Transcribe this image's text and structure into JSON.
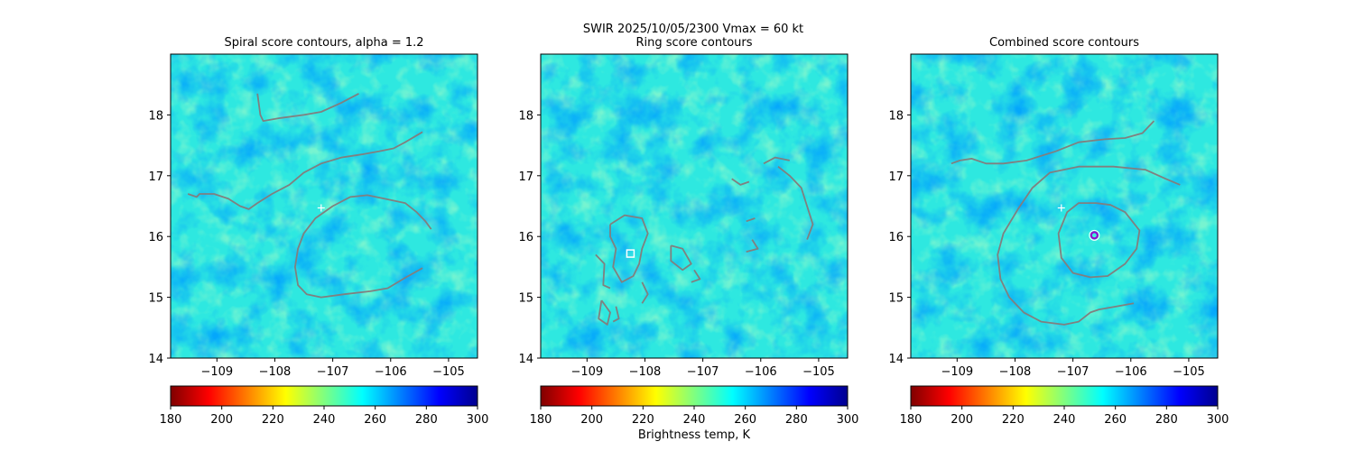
{
  "suptitle": "SWIR  2025/10/05/2300    Vmax = 60 kt",
  "colorbar_label": "Brightness temp, K",
  "colormap": "jet",
  "colorbar_ticks": [
    180,
    200,
    220,
    240,
    260,
    280,
    300
  ],
  "contour_color": "#808080",
  "marker_color": "#ffffff",
  "center_marker_color": "#9900cc",
  "chart_data": [
    {
      "type": "heatmap",
      "title": "Spiral score contours, alpha =  1.2",
      "xlim": [
        -109.8,
        -104.5
      ],
      "ylim": [
        14,
        19
      ],
      "xticks": [
        -109,
        -108,
        -107,
        -106,
        -105
      ],
      "yticks": [
        14,
        15,
        16,
        17,
        18
      ],
      "xtick_labels": [
        "−109",
        "−108",
        "−107",
        "−106",
        "−105"
      ],
      "ytick_labels": [
        "14",
        "15",
        "16",
        "17",
        "18"
      ],
      "value_range": [
        180,
        300
      ],
      "contours": [
        [
          [
            -108.3,
            18.35
          ],
          [
            -108.25,
            18.0
          ],
          [
            -108.2,
            17.9
          ],
          [
            -107.9,
            17.95
          ],
          [
            -107.5,
            18.0
          ],
          [
            -107.2,
            18.05
          ],
          [
            -106.85,
            18.2
          ],
          [
            -106.55,
            18.35
          ]
        ],
        [
          [
            -109.5,
            16.7
          ],
          [
            -109.35,
            16.65
          ],
          [
            -109.3,
            16.7
          ],
          [
            -109.05,
            16.7
          ],
          [
            -108.8,
            16.62
          ],
          [
            -108.6,
            16.5
          ],
          [
            -108.45,
            16.45
          ],
          [
            -108.3,
            16.55
          ],
          [
            -108.05,
            16.7
          ],
          [
            -107.75,
            16.85
          ],
          [
            -107.5,
            17.05
          ],
          [
            -107.2,
            17.2
          ],
          [
            -106.85,
            17.3
          ],
          [
            -106.5,
            17.35
          ],
          [
            -106.2,
            17.4
          ],
          [
            -105.95,
            17.45
          ],
          [
            -105.75,
            17.55
          ],
          [
            -105.45,
            17.72
          ]
        ],
        [
          [
            -105.45,
            15.48
          ],
          [
            -105.75,
            15.32
          ],
          [
            -106.05,
            15.15
          ],
          [
            -106.35,
            15.1
          ],
          [
            -106.8,
            15.05
          ],
          [
            -107.2,
            15.0
          ],
          [
            -107.45,
            15.05
          ],
          [
            -107.6,
            15.2
          ],
          [
            -107.65,
            15.5
          ],
          [
            -107.6,
            15.8
          ],
          [
            -107.5,
            16.05
          ],
          [
            -107.3,
            16.3
          ],
          [
            -107.0,
            16.5
          ],
          [
            -106.7,
            16.65
          ],
          [
            -106.4,
            16.68
          ],
          [
            -106.1,
            16.62
          ],
          [
            -105.75,
            16.55
          ],
          [
            -105.55,
            16.4
          ],
          [
            -105.4,
            16.25
          ],
          [
            -105.3,
            16.12
          ]
        ]
      ],
      "markers": [
        {
          "type": "plus",
          "x": -107.2,
          "y": 16.47
        }
      ]
    },
    {
      "type": "heatmap",
      "title": "Ring score contours",
      "xlim": [
        -109.8,
        -104.5
      ],
      "ylim": [
        14,
        19
      ],
      "xticks": [
        -109,
        -108,
        -107,
        -106,
        -105
      ],
      "yticks": [
        14,
        15,
        16,
        17,
        18
      ],
      "xtick_labels": [
        "−109",
        "−108",
        "−107",
        "−106",
        "−105"
      ],
      "ytick_labels": [
        "14",
        "15",
        "16",
        "17",
        "18"
      ],
      "value_range": [
        180,
        300
      ],
      "contours": [
        [
          [
            -108.6,
            16.2
          ],
          [
            -108.35,
            16.35
          ],
          [
            -108.05,
            16.3
          ],
          [
            -107.95,
            16.05
          ],
          [
            -108.05,
            15.8
          ],
          [
            -108.1,
            15.55
          ],
          [
            -108.2,
            15.35
          ],
          [
            -108.4,
            15.25
          ],
          [
            -108.55,
            15.5
          ],
          [
            -108.5,
            15.8
          ],
          [
            -108.6,
            16.0
          ],
          [
            -108.6,
            16.2
          ]
        ],
        [
          [
            -108.85,
            15.7
          ],
          [
            -108.7,
            15.55
          ],
          [
            -108.72,
            15.2
          ],
          [
            -108.6,
            15.15
          ]
        ],
        [
          [
            -108.75,
            14.95
          ],
          [
            -108.6,
            14.75
          ],
          [
            -108.65,
            14.55
          ],
          [
            -108.8,
            14.65
          ],
          [
            -108.75,
            14.95
          ]
        ],
        [
          [
            -108.5,
            14.85
          ],
          [
            -108.45,
            14.65
          ],
          [
            -108.55,
            14.6
          ]
        ],
        [
          [
            -108.05,
            15.25
          ],
          [
            -107.95,
            15.05
          ],
          [
            -108.05,
            14.9
          ]
        ],
        [
          [
            -107.55,
            15.85
          ],
          [
            -107.35,
            15.8
          ],
          [
            -107.2,
            15.55
          ],
          [
            -107.35,
            15.45
          ],
          [
            -107.55,
            15.6
          ],
          [
            -107.55,
            15.85
          ]
        ],
        [
          [
            -107.15,
            15.45
          ],
          [
            -107.05,
            15.3
          ],
          [
            -107.2,
            15.25
          ]
        ],
        [
          [
            -105.7,
            17.15
          ],
          [
            -105.5,
            17.0
          ],
          [
            -105.3,
            16.8
          ],
          [
            -105.2,
            16.5
          ],
          [
            -105.1,
            16.2
          ],
          [
            -105.2,
            15.95
          ]
        ],
        [
          [
            -105.95,
            17.2
          ],
          [
            -105.75,
            17.3
          ],
          [
            -105.5,
            17.25
          ]
        ],
        [
          [
            -106.5,
            16.95
          ],
          [
            -106.35,
            16.85
          ],
          [
            -106.2,
            16.9
          ]
        ],
        [
          [
            -106.15,
            15.95
          ],
          [
            -106.05,
            15.8
          ],
          [
            -106.25,
            15.75
          ]
        ],
        [
          [
            -106.25,
            16.25
          ],
          [
            -106.1,
            16.3
          ]
        ]
      ],
      "markers": [
        {
          "type": "square",
          "x": -108.25,
          "y": 15.72
        }
      ]
    },
    {
      "type": "heatmap",
      "title": "Combined score contours",
      "xlim": [
        -109.8,
        -104.5
      ],
      "ylim": [
        14,
        19
      ],
      "xticks": [
        -109,
        -108,
        -107,
        -106,
        -105
      ],
      "yticks": [
        14,
        15,
        16,
        17,
        18
      ],
      "xtick_labels": [
        "−109",
        "−108",
        "−107",
        "−106",
        "−105"
      ],
      "ytick_labels": [
        "14",
        "15",
        "16",
        "17",
        "18"
      ],
      "value_range": [
        180,
        300
      ],
      "contours": [
        [
          [
            -109.1,
            17.2
          ],
          [
            -108.95,
            17.25
          ],
          [
            -108.75,
            17.28
          ],
          [
            -108.5,
            17.2
          ],
          [
            -108.2,
            17.2
          ],
          [
            -107.8,
            17.25
          ],
          [
            -107.3,
            17.4
          ],
          [
            -106.9,
            17.55
          ],
          [
            -106.45,
            17.6
          ],
          [
            -106.1,
            17.62
          ],
          [
            -105.8,
            17.7
          ],
          [
            -105.6,
            17.9
          ]
        ],
        [
          [
            -105.15,
            16.85
          ],
          [
            -105.4,
            16.95
          ],
          [
            -105.75,
            17.1
          ],
          [
            -106.3,
            17.15
          ],
          [
            -106.9,
            17.15
          ],
          [
            -107.4,
            17.05
          ],
          [
            -107.7,
            16.8
          ],
          [
            -107.95,
            16.45
          ],
          [
            -108.2,
            16.05
          ],
          [
            -108.3,
            15.7
          ],
          [
            -108.25,
            15.3
          ],
          [
            -108.1,
            15.0
          ],
          [
            -107.85,
            14.75
          ],
          [
            -107.55,
            14.6
          ],
          [
            -107.15,
            14.55
          ],
          [
            -106.9,
            14.6
          ],
          [
            -106.7,
            14.75
          ],
          [
            -106.55,
            14.8
          ],
          [
            -106.25,
            14.85
          ],
          [
            -105.95,
            14.9
          ]
        ],
        [
          [
            -106.6,
            16.55
          ],
          [
            -106.9,
            16.55
          ],
          [
            -107.1,
            16.4
          ],
          [
            -107.25,
            16.05
          ],
          [
            -107.2,
            15.65
          ],
          [
            -107.0,
            15.4
          ],
          [
            -106.7,
            15.33
          ],
          [
            -106.4,
            15.35
          ],
          [
            -106.1,
            15.55
          ],
          [
            -105.9,
            15.8
          ],
          [
            -105.85,
            16.1
          ],
          [
            -106.1,
            16.4
          ],
          [
            -106.35,
            16.52
          ],
          [
            -106.6,
            16.55
          ]
        ]
      ],
      "markers": [
        {
          "type": "plus",
          "x": -107.2,
          "y": 16.47
        },
        {
          "type": "circle",
          "x": -106.63,
          "y": 16.02
        }
      ]
    }
  ]
}
